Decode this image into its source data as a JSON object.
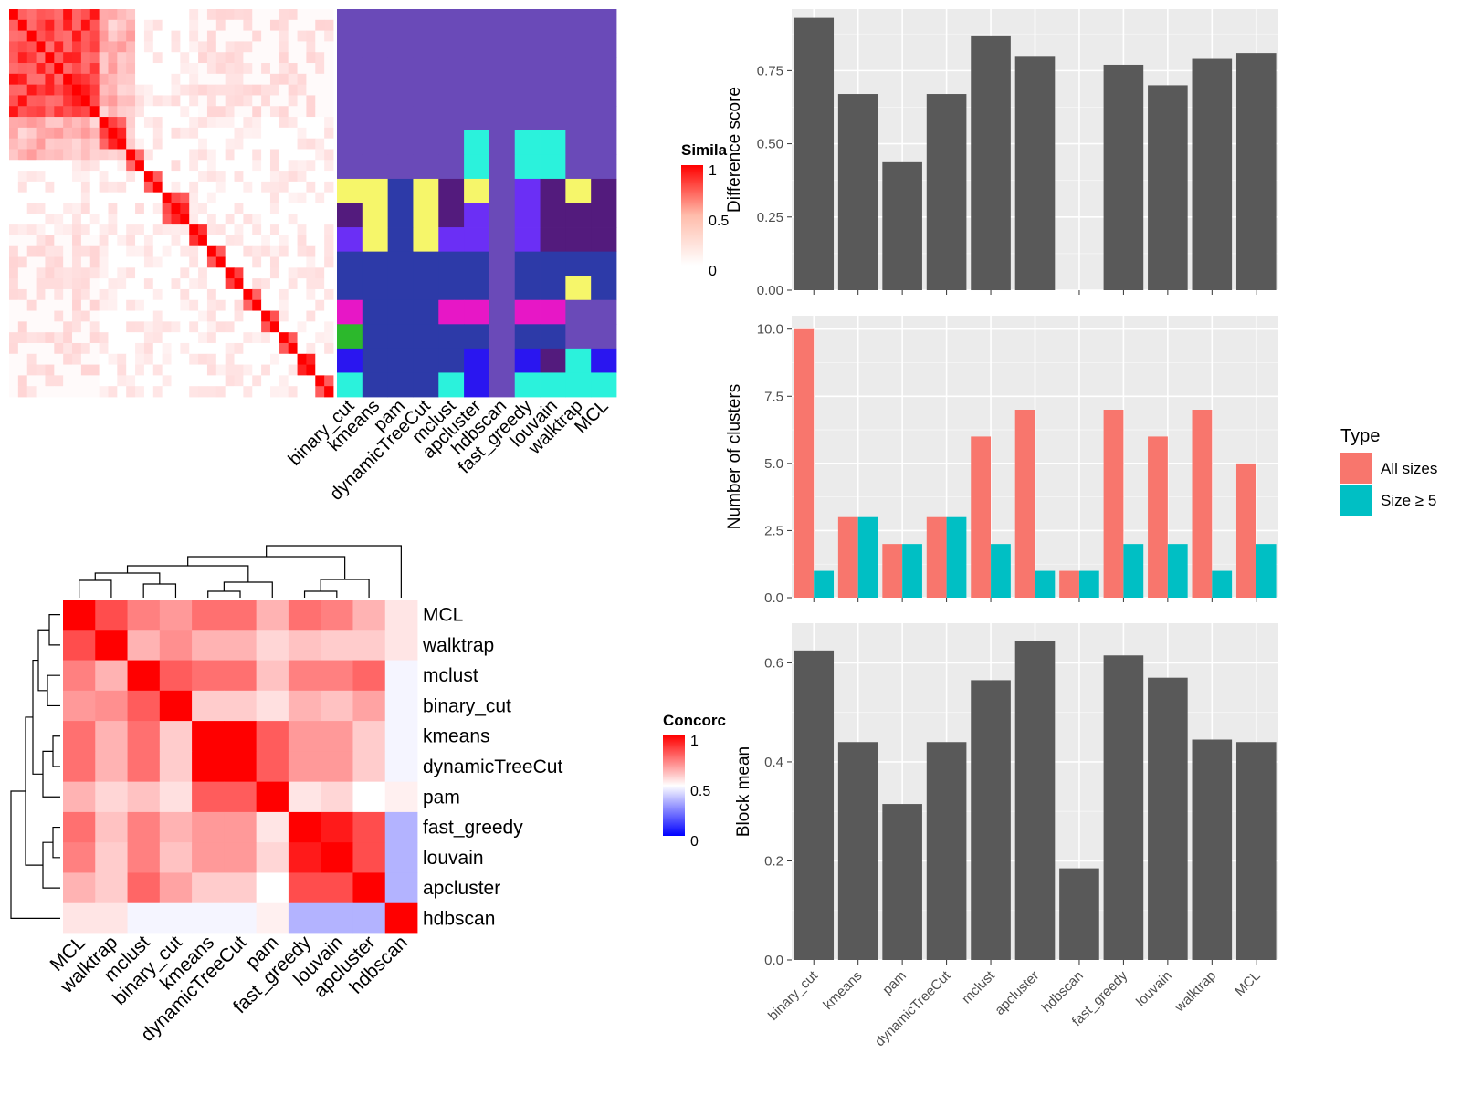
{
  "sim_legend": {
    "title": "Simila",
    "ticks": [
      "1",
      "0.5",
      "0"
    ]
  },
  "conc_legend": {
    "title": "Concorc",
    "ticks": [
      "1",
      "0.5",
      "0"
    ]
  },
  "type_legend": {
    "title": "Type",
    "items": [
      "All sizes",
      "Size ≥ 5"
    ]
  },
  "colors": {
    "all_sizes": "#f8766d",
    "size5": "#00bfc4",
    "bar": "#595959",
    "panel_bg": "#ebebeb",
    "heat_high": "#ff0000"
  },
  "chart_data": [
    {
      "type": "heatmap",
      "name": "cell-similarity-heatmap",
      "legend_title": "Simila",
      "legend_range": [
        0,
        1
      ],
      "note": "cell-by-cell similarity, ordered; strong diagonal blocks"
    },
    {
      "type": "heatmap",
      "name": "cluster-assignment-heatmap",
      "columns": [
        "binary_cut",
        "kmeans",
        "pam",
        "dynamicTreeCut",
        "mclust",
        "apcluster",
        "hdbscan",
        "fast_greedy",
        "louvain",
        "walktrap",
        "MCL"
      ],
      "palette": [
        "#6a4ab8",
        "#2d3aa8",
        "#f6f66a",
        "#531b7d",
        "#6b2ff5",
        "#e717c6",
        "#2cb82c",
        "#2a16f0",
        "#2bf2dc"
      ],
      "assignments": [
        [
          0,
          0,
          0,
          0,
          0,
          0,
          0,
          0,
          0,
          0,
          0
        ],
        [
          0,
          0,
          0,
          0,
          0,
          0,
          0,
          0,
          0,
          0,
          0
        ],
        [
          0,
          0,
          0,
          0,
          0,
          0,
          0,
          0,
          0,
          0,
          0
        ],
        [
          0,
          0,
          0,
          0,
          0,
          0,
          0,
          0,
          0,
          0,
          0
        ],
        [
          0,
          0,
          0,
          0,
          0,
          0,
          0,
          0,
          0,
          0,
          0
        ],
        [
          0,
          0,
          0,
          0,
          0,
          8,
          0,
          8,
          8,
          0,
          0
        ],
        [
          0,
          0,
          0,
          0,
          0,
          8,
          0,
          8,
          8,
          0,
          0
        ],
        [
          2,
          2,
          1,
          2,
          3,
          2,
          0,
          4,
          3,
          2,
          3
        ],
        [
          3,
          2,
          1,
          2,
          3,
          4,
          0,
          4,
          3,
          3,
          3
        ],
        [
          4,
          2,
          1,
          2,
          4,
          4,
          0,
          4,
          3,
          3,
          3
        ],
        [
          1,
          1,
          1,
          1,
          1,
          1,
          0,
          1,
          1,
          1,
          1
        ],
        [
          1,
          1,
          1,
          1,
          1,
          1,
          0,
          1,
          1,
          2,
          1
        ],
        [
          5,
          1,
          1,
          1,
          5,
          5,
          0,
          5,
          5,
          0,
          0
        ],
        [
          6,
          1,
          1,
          1,
          1,
          1,
          0,
          1,
          1,
          0,
          0
        ],
        [
          7,
          1,
          1,
          1,
          1,
          7,
          0,
          7,
          3,
          8,
          7
        ],
        [
          8,
          1,
          1,
          1,
          8,
          7,
          0,
          8,
          8,
          8,
          8
        ]
      ]
    },
    {
      "type": "heatmap",
      "name": "concordance-heatmap",
      "legend_title": "Concorc",
      "legend_range": [
        0,
        1
      ],
      "rows": [
        "MCL",
        "walktrap",
        "mclust",
        "binary_cut",
        "kmeans",
        "dynamicTreeCut",
        "pam",
        "fast_greedy",
        "louvain",
        "apcluster",
        "hdbscan"
      ],
      "columns": [
        "MCL",
        "walktrap",
        "mclust",
        "binary_cut",
        "kmeans",
        "dynamicTreeCut",
        "pam",
        "fast_greedy",
        "louvain",
        "apcluster",
        "hdbscan"
      ],
      "values": [
        [
          1.0,
          0.85,
          0.75,
          0.7,
          0.78,
          0.78,
          0.65,
          0.78,
          0.75,
          0.65,
          0.55
        ],
        [
          0.85,
          1.0,
          0.65,
          0.72,
          0.65,
          0.65,
          0.58,
          0.62,
          0.6,
          0.6,
          0.55
        ],
        [
          0.75,
          0.65,
          1.0,
          0.82,
          0.78,
          0.78,
          0.62,
          0.75,
          0.75,
          0.8,
          0.48
        ],
        [
          0.7,
          0.72,
          0.82,
          1.0,
          0.6,
          0.6,
          0.56,
          0.65,
          0.62,
          0.68,
          0.48
        ],
        [
          0.78,
          0.65,
          0.78,
          0.6,
          1.0,
          1.0,
          0.82,
          0.7,
          0.7,
          0.6,
          0.48
        ],
        [
          0.78,
          0.65,
          0.78,
          0.6,
          1.0,
          1.0,
          0.82,
          0.7,
          0.7,
          0.6,
          0.48
        ],
        [
          0.65,
          0.58,
          0.62,
          0.56,
          0.82,
          0.82,
          1.0,
          0.55,
          0.58,
          0.5,
          0.53
        ],
        [
          0.78,
          0.62,
          0.75,
          0.65,
          0.7,
          0.7,
          0.55,
          1.0,
          0.95,
          0.85,
          0.35
        ],
        [
          0.75,
          0.6,
          0.75,
          0.62,
          0.7,
          0.7,
          0.58,
          0.95,
          1.0,
          0.85,
          0.35
        ],
        [
          0.65,
          0.6,
          0.8,
          0.68,
          0.6,
          0.6,
          0.5,
          0.85,
          0.85,
          1.0,
          0.35
        ],
        [
          0.55,
          0.55,
          0.48,
          0.48,
          0.48,
          0.48,
          0.53,
          0.35,
          0.35,
          0.35,
          1.0
        ]
      ]
    },
    {
      "type": "bar",
      "name": "difference-score",
      "categories": [
        "binary_cut",
        "kmeans",
        "pam",
        "dynamicTreeCut",
        "mclust",
        "apcluster",
        "hdbscan",
        "fast_greedy",
        "louvain",
        "walktrap",
        "MCL"
      ],
      "values": [
        0.93,
        0.67,
        0.44,
        0.67,
        0.87,
        0.8,
        0.0,
        0.77,
        0.7,
        0.79,
        0.81
      ],
      "ylabel": "Difference score",
      "ylim": [
        0,
        0.96
      ],
      "yticks": [
        "0.00",
        "0.25",
        "0.50",
        "0.75"
      ]
    },
    {
      "type": "bar",
      "name": "number-of-clusters",
      "categories": [
        "binary_cut",
        "kmeans",
        "pam",
        "dynamicTreeCut",
        "mclust",
        "apcluster",
        "hdbscan",
        "fast_greedy",
        "louvain",
        "walktrap",
        "MCL"
      ],
      "series": [
        {
          "name": "All sizes",
          "values": [
            10,
            3,
            2,
            3,
            6,
            7,
            1,
            7,
            6,
            7,
            5
          ]
        },
        {
          "name": "Size ≥ 5",
          "values": [
            1,
            3,
            2,
            3,
            2,
            1,
            1,
            2,
            2,
            1,
            2
          ]
        }
      ],
      "ylabel": "Number of clusters",
      "ylim": [
        0,
        10.5
      ],
      "yticks": [
        "0.0",
        "2.5",
        "5.0",
        "7.5",
        "10.0"
      ],
      "legend": "right"
    },
    {
      "type": "bar",
      "name": "block-mean",
      "categories": [
        "binary_cut",
        "kmeans",
        "pam",
        "dynamicTreeCut",
        "mclust",
        "apcluster",
        "hdbscan",
        "fast_greedy",
        "louvain",
        "walktrap",
        "MCL"
      ],
      "values": [
        0.625,
        0.44,
        0.315,
        0.44,
        0.565,
        0.645,
        0.185,
        0.615,
        0.57,
        0.445,
        0.44
      ],
      "ylabel": "Block mean",
      "ylim": [
        0,
        0.68
      ],
      "yticks": [
        "0.0",
        "0.2",
        "0.4",
        "0.6"
      ]
    }
  ]
}
